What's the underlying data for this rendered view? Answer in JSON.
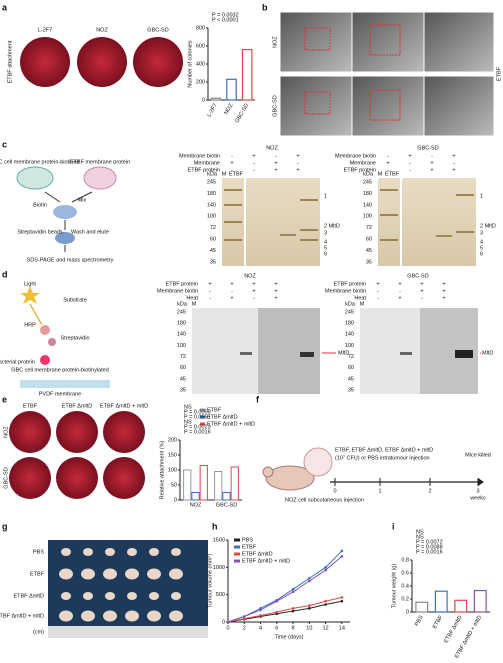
{
  "figure": {
    "panel_labels": [
      "a",
      "b",
      "c",
      "d",
      "e",
      "f",
      "g",
      "h",
      "i"
    ],
    "a": {
      "row_label": "ETBF attachment",
      "plate_labels": [
        "L-2F7",
        "NOZ",
        "GBC-SD"
      ]
    },
    "b": {
      "row_labels": [
        "NOZ",
        "GBC-SD"
      ],
      "side_label": "ETBF"
    },
    "c": {
      "scheme": [
        "GBC cell membrane protein-biotined",
        "ETBF membrane protein",
        "Mix",
        "Biotin",
        "Streptavidin beads",
        "Wash and elute",
        "SDS-PAGE and mass spectrometry"
      ],
      "gels": [
        {
          "title": "NOZ",
          "rows": [
            "Membrane biotin",
            "Membrane",
            "ETBF protein"
          ],
          "signs": [
            [
              "-",
              "+",
              "-",
              "+"
            ],
            [
              "+",
              "-",
              "+",
              "-"
            ],
            [
              "-",
              "-",
              "+",
              "+"
            ]
          ]
        },
        {
          "title": "GBC-SD",
          "rows": [
            "Membrane biotin",
            "Membrane",
            "ETBF protein"
          ],
          "signs": [
            [
              "-",
              "+",
              "-",
              "+"
            ],
            [
              "+",
              "-",
              "+",
              "-"
            ],
            [
              "-",
              "-",
              "+",
              "+"
            ]
          ]
        }
      ],
      "marker_header": [
        "kDa",
        "M",
        "ETBF"
      ],
      "markers": [
        "245",
        "180",
        "140",
        "100",
        "72",
        "60",
        "45",
        "35"
      ],
      "bands": [
        "1",
        "2 MltD",
        "3",
        "4",
        "5",
        "6"
      ]
    },
    "d": {
      "scheme": [
        "Light",
        "Substrate",
        "HRP",
        "Streptavidin",
        "Bacterial protein",
        "GBC cell membrane protein-biotinylated",
        "PVDF membrane"
      ],
      "gels": [
        {
          "title": "NOZ",
          "rows": [
            "ETBF protein",
            "Membrane biotin",
            "Heat"
          ],
          "signs": [
            [
              "+",
              "+",
              "+",
              "+"
            ],
            [
              "-",
              "-",
              "+",
              "+"
            ],
            [
              "-",
              "+",
              "-",
              "+"
            ]
          ]
        },
        {
          "title": "GBC-SD",
          "rows": [
            "ETBF protein",
            "Membrane biotin",
            "Heat"
          ],
          "signs": [
            [
              "+",
              "+",
              "+",
              "+"
            ],
            [
              "-",
              "-",
              "+",
              "+"
            ],
            [
              "-",
              "+",
              "-",
              "+"
            ]
          ]
        }
      ],
      "marker_header": [
        "kDa",
        "M"
      ],
      "markers": [
        "245",
        "180",
        "140",
        "100",
        "72",
        "60",
        "45",
        "35"
      ],
      "band": "MltD"
    },
    "e": {
      "col_labels": [
        "ETBF",
        "ETBF ΔmltD",
        "ETBF ΔmltD + mltD"
      ],
      "row_labels": [
        "NOZ",
        "GBC-SD"
      ]
    },
    "f": {
      "treatment": "ETBF, ETBF ΔmltD, ETBF ΔmltD + mltD",
      "dose": "(10⁷ CFU) or PBS intratumour injection",
      "start": "NOZ cell subcutaneous injection",
      "end": "Mice killed",
      "ticks": [
        "0",
        "1",
        "2",
        "3"
      ],
      "unit": "weeks"
    },
    "g": {
      "row_labels": [
        "PBS",
        "ETBF",
        "ETBF ΔmltD",
        "ETBF ΔmltD + mltD"
      ],
      "unit": "(cm)"
    }
  },
  "chart_data": [
    {
      "type": "bar",
      "y_label": "Number of colonies",
      "categories": [
        "L-2F7",
        "NOZ",
        "GBC-SD"
      ],
      "values": [
        20,
        230,
        560
      ],
      "colors": [
        "#888888",
        "#3a6fc4",
        "#e04848"
      ],
      "ylim": [
        0,
        800
      ],
      "yticks": [
        0,
        200,
        400,
        600,
        800
      ],
      "annotations": [
        "P = 0.0032",
        "P < 0.0001"
      ]
    },
    {
      "type": "bar",
      "y_label": "Relative attachment (%)",
      "categories": [
        "NOZ",
        "GBC-SD"
      ],
      "series": [
        {
          "name": "ETBF",
          "color": "#999999",
          "values": [
            100,
            95
          ]
        },
        {
          "name": "ETBF ΔmltD",
          "color": "#3a6fc4",
          "values": [
            25,
            25
          ]
        },
        {
          "name": "ETBF ΔmltD + mltD",
          "color": "#e04848",
          "values": [
            115,
            110
          ]
        }
      ],
      "ylim": [
        0,
        200
      ],
      "yticks": [
        0,
        50,
        100,
        150,
        200
      ],
      "annotations": [
        "NS",
        "P = 0.0050",
        "P = 0.0051",
        "NS",
        "P = 0.0023",
        "P = 0.0016"
      ]
    },
    {
      "type": "line",
      "x_label": "Time (days)",
      "y_label": "Tumour volume (mm³)",
      "x": [
        0,
        2,
        4,
        6,
        8,
        10,
        12,
        14
      ],
      "xlim": [
        0,
        15
      ],
      "xticks": [
        0,
        2,
        4,
        6,
        8,
        10,
        12,
        14
      ],
      "ylim": [
        0,
        1500
      ],
      "yticks": [
        0,
        500,
        1000,
        1500
      ],
      "series": [
        {
          "name": "PBS",
          "color": "#222222",
          "values": [
            0,
            50,
            100,
            150,
            200,
            250,
            320,
            380
          ]
        },
        {
          "name": "ETBF",
          "color": "#3a6fc4",
          "values": [
            0,
            100,
            250,
            400,
            600,
            800,
            1000,
            1300
          ]
        },
        {
          "name": "ETBF ΔmltD",
          "color": "#e04848",
          "values": [
            0,
            60,
            120,
            180,
            250,
            300,
            380,
            450
          ]
        },
        {
          "name": "ETBF ΔmltD + mltD",
          "color": "#8a4fb0",
          "values": [
            0,
            100,
            220,
            380,
            550,
            750,
            950,
            1200
          ]
        }
      ]
    },
    {
      "type": "bar",
      "y_label": "Tumour weight (g)",
      "categories": [
        "PBS",
        "ETBF",
        "ETBF ΔmltD",
        "ETBF ΔmltD + mltD"
      ],
      "values": [
        0.15,
        0.32,
        0.18,
        0.33
      ],
      "colors": [
        "#888888",
        "#3a6fc4",
        "#e04848",
        "#8a4fb0"
      ],
      "ylim": [
        0,
        0.8
      ],
      "yticks": [
        0,
        0.2,
        0.4,
        0.6,
        0.8
      ],
      "annotations": [
        "NS",
        "NS",
        "P = 0.0072",
        "P = 0.0088",
        "P = 0.0016"
      ]
    }
  ]
}
